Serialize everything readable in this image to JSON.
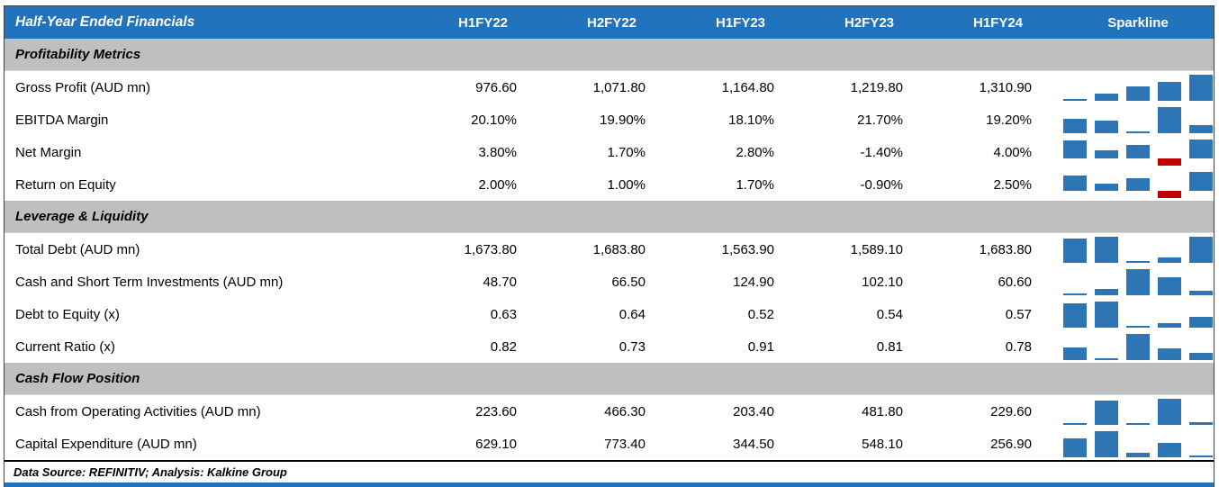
{
  "colors": {
    "header_bg": "#2173BC",
    "section_bg": "#BFBFBF",
    "bar_positive": "#2E75B6",
    "bar_negative": "#C00000"
  },
  "chart_data": {
    "type": "table",
    "title": "Half-Year Ended Financials",
    "columns": [
      "H1FY22",
      "H2FY22",
      "H1FY23",
      "H2FY23",
      "H1FY24"
    ],
    "sparkline_label": "Sparkline",
    "sections": [
      {
        "title": "Profitability Metrics",
        "rows": [
          {
            "label": "Gross Profit (AUD mn)",
            "values": [
              "976.60",
              "1,071.80",
              "1,164.80",
              "1,219.80",
              "1,310.90"
            ],
            "spark": [
              976.6,
              1071.8,
              1164.8,
              1219.8,
              1310.9
            ]
          },
          {
            "label": "EBITDA Margin",
            "values": [
              "20.10%",
              "19.90%",
              "18.10%",
              "21.70%",
              "19.20%"
            ],
            "spark": [
              20.1,
              19.9,
              18.1,
              21.7,
              19.2
            ]
          },
          {
            "label": "Net Margin",
            "values": [
              "3.80%",
              "1.70%",
              "2.80%",
              "-1.40%",
              "4.00%"
            ],
            "spark": [
              3.8,
              1.7,
              2.8,
              -1.4,
              4.0
            ]
          },
          {
            "label": "Return on Equity",
            "values": [
              "2.00%",
              "1.00%",
              "1.70%",
              "-0.90%",
              "2.50%"
            ],
            "spark": [
              2.0,
              1.0,
              1.7,
              -0.9,
              2.5
            ]
          }
        ]
      },
      {
        "title": "Leverage & Liquidity",
        "rows": [
          {
            "label": "Total Debt (AUD mn)",
            "values": [
              "1,673.80",
              "1,683.80",
              "1,563.90",
              "1,589.10",
              "1,683.80"
            ],
            "spark": [
              1673.8,
              1683.8,
              1563.9,
              1589.1,
              1683.8
            ]
          },
          {
            "label": "Cash and Short Term Investments (AUD mn)",
            "values": [
              "48.70",
              "66.50",
              "124.90",
              "102.10",
              "60.60"
            ],
            "spark": [
              48.7,
              66.5,
              124.9,
              102.1,
              60.6
            ]
          },
          {
            "label": "Debt to Equity (x)",
            "values": [
              "0.63",
              "0.64",
              "0.52",
              "0.54",
              "0.57"
            ],
            "spark": [
              0.63,
              0.64,
              0.52,
              0.54,
              0.57
            ]
          },
          {
            "label": "Current Ratio (x)",
            "values": [
              "0.82",
              "0.73",
              "0.91",
              "0.81",
              "0.78"
            ],
            "spark": [
              0.82,
              0.73,
              0.91,
              0.81,
              0.78
            ]
          }
        ]
      },
      {
        "title": "Cash Flow Position",
        "rows": [
          {
            "label": "Cash from Operating Activities (AUD mn)",
            "values": [
              "223.60",
              "466.30",
              "203.40",
              "481.80",
              "229.60"
            ],
            "spark": [
              223.6,
              466.3,
              203.4,
              481.8,
              229.6
            ]
          },
          {
            "label": "Capital Expenditure (AUD mn)",
            "values": [
              "629.10",
              "773.40",
              "344.50",
              "548.10",
              "256.90"
            ],
            "spark": [
              629.1,
              773.4,
              344.5,
              548.1,
              256.9
            ]
          }
        ]
      }
    ],
    "footer": "Data Source: REFINITIV; Analysis: Kalkine Group"
  }
}
